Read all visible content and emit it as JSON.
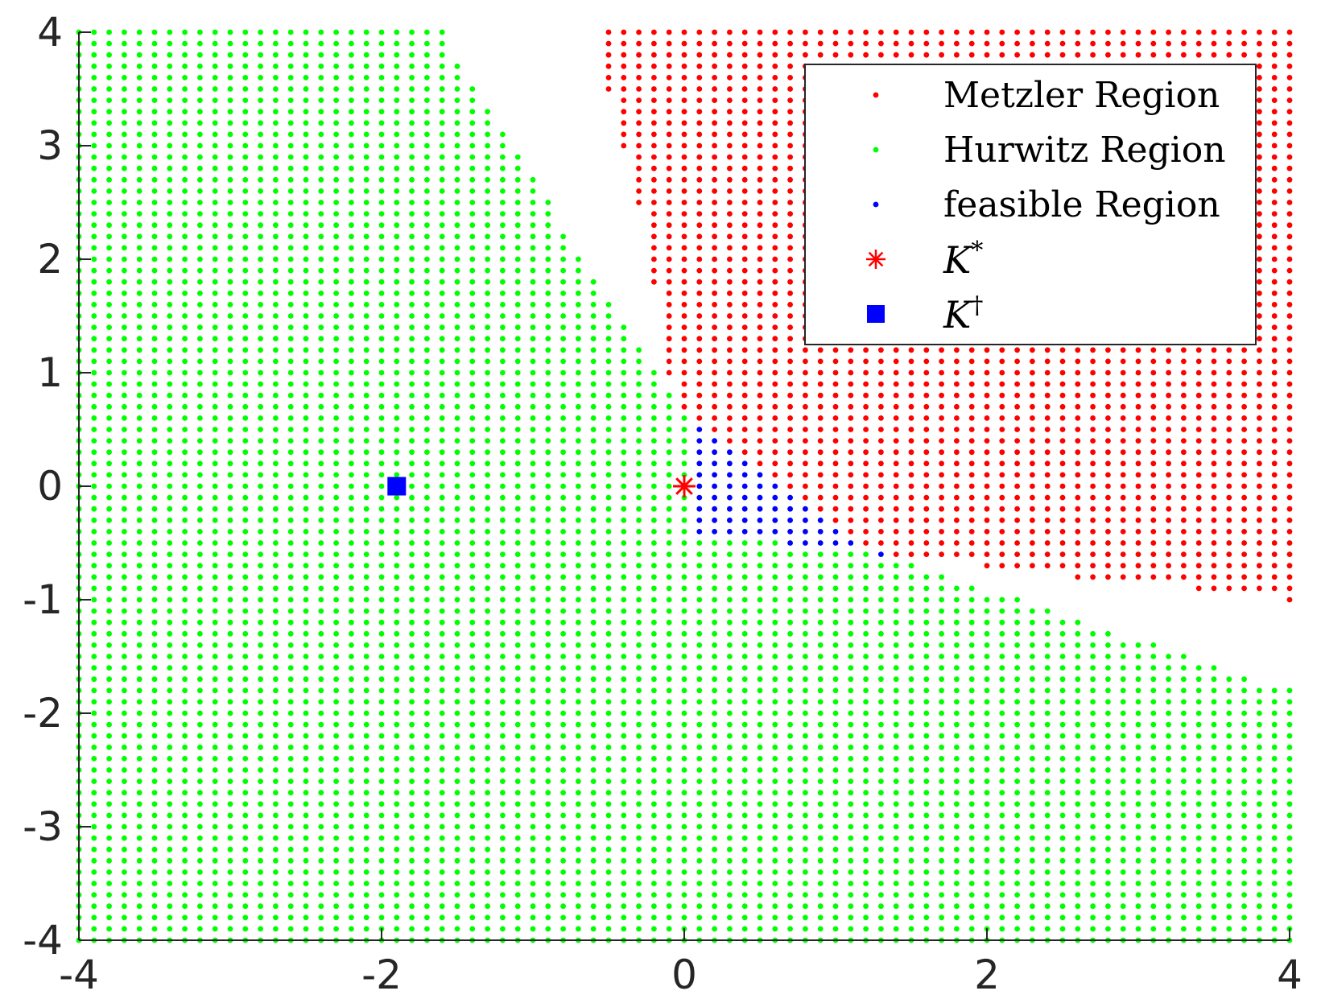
{
  "chart_data": {
    "type": "scatter",
    "title": "",
    "xlabel": "",
    "ylabel": "",
    "xlim": [
      -4,
      4
    ],
    "ylim": [
      -4,
      4
    ],
    "grid_step": 0.1,
    "grid": false,
    "legend_placement": "top-right",
    "x_ticks": [
      -4,
      -2,
      0,
      2,
      4
    ],
    "y_ticks": [
      -4,
      -3,
      -2,
      -1,
      0,
      1,
      2,
      3,
      4
    ],
    "x_tick_labels": [
      "-4",
      "-2",
      "0",
      "2",
      "4"
    ],
    "y_tick_labels": [
      "-4",
      "-3",
      "-2",
      "-1",
      "0",
      "1",
      "2",
      "3",
      "4"
    ],
    "regions": {
      "hurwitz_boundary": [
        [
          -4,
          4
        ],
        [
          -1.6,
          4
        ],
        [
          -0.2,
          1.0
        ],
        [
          0,
          0.6
        ],
        [
          1.3,
          -0.6
        ],
        [
          4,
          -1.8
        ]
      ],
      "metzler_boundary": [
        [
          -0.5,
          4
        ],
        [
          -0.5,
          3.5
        ],
        [
          -0.3,
          2.5
        ],
        [
          -0.1,
          1.0
        ],
        [
          0,
          0.7
        ],
        [
          0.4,
          0.2
        ],
        [
          1.3,
          -0.6
        ],
        [
          2.6,
          -0.8
        ],
        [
          3.4,
          -0.9
        ],
        [
          4,
          -1.0
        ]
      ],
      "feasible_boundary": [
        [
          0.05,
          0.6
        ],
        [
          0.4,
          0.2
        ],
        [
          1.3,
          -0.6
        ],
        [
          0.05,
          -0.4
        ]
      ]
    },
    "series": [
      {
        "name": "Metzler Region",
        "color": "#ff0000",
        "marker": "dot"
      },
      {
        "name": "Hurwitz Region",
        "color": "#00ff00",
        "marker": "dot"
      },
      {
        "name": "feasible Region",
        "color": "#0000ff",
        "marker": "dot"
      },
      {
        "name": "K*",
        "color": "#ff0000",
        "marker": "asterisk",
        "points": [
          [
            0,
            0
          ]
        ]
      },
      {
        "name": "K†",
        "color": "#0000ff",
        "marker": "square",
        "points": [
          [
            -1.9,
            0
          ]
        ]
      }
    ],
    "legend": {
      "entries": [
        {
          "text": "Metzler Region",
          "kind": "text"
        },
        {
          "text": "Hurwitz Region",
          "kind": "text"
        },
        {
          "text": "feasible Region",
          "kind": "text"
        },
        {
          "base": "K",
          "sup": "*",
          "kind": "math"
        },
        {
          "base": "K",
          "sup": "†",
          "kind": "math"
        }
      ]
    }
  }
}
